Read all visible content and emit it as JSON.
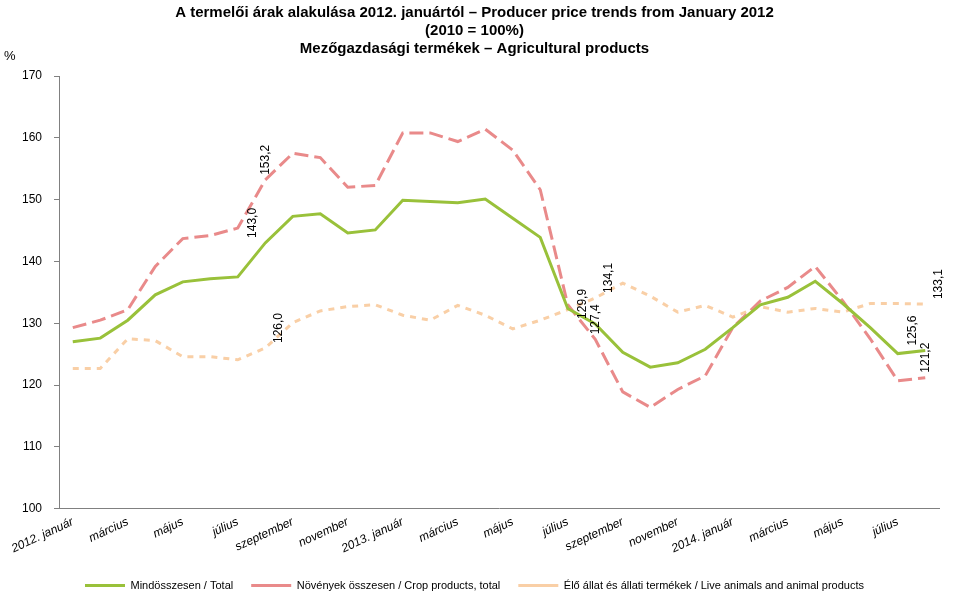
{
  "chart_data": {
    "type": "line",
    "title": [
      "A termelői árak alakulása 2012. januártól – Producer price trends from January 2012",
      "(2010 = 100%)",
      "Mezőgazdasági termékek – Agricultural products"
    ],
    "y_label": "%",
    "categories": [
      "2012. január",
      null,
      "március",
      null,
      "május",
      null,
      "július",
      null,
      "szeptember",
      null,
      "november",
      null,
      "2013. január",
      null,
      "március",
      null,
      "május",
      null,
      "július",
      null,
      "szeptember",
      null,
      "november",
      null,
      "2014. január",
      null,
      "március",
      null,
      "május",
      null,
      "július",
      null
    ],
    "series": [
      {
        "name": "Mindösszesen / Total",
        "color": "#99c13a",
        "line_style": "solid",
        "values": [
          127.0,
          127.6,
          130.5,
          134.6,
          136.7,
          137.2,
          137.5,
          143.0,
          147.3,
          147.7,
          144.6,
          145.1,
          149.9,
          149.7,
          149.5,
          150.1,
          147.0,
          143.9,
          132.4,
          129.9,
          125.3,
          122.9,
          123.6,
          125.8,
          129.3,
          133.0,
          134.2,
          136.8,
          133.2,
          129.3,
          125.1,
          125.6
        ],
        "value_labels": [
          null,
          null,
          null,
          null,
          null,
          null,
          null,
          "143,0",
          null,
          null,
          null,
          null,
          null,
          null,
          null,
          null,
          null,
          null,
          null,
          "129,9",
          null,
          null,
          null,
          null,
          null,
          null,
          null,
          null,
          null,
          null,
          null,
          "125,6"
        ]
      },
      {
        "name": "Növények összesen / Crop products, total",
        "color": "#e98a8a",
        "line_style": "dashed",
        "values": [
          129.3,
          130.5,
          132.2,
          139.2,
          143.7,
          144.2,
          145.4,
          153.2,
          157.5,
          156.8,
          152.0,
          152.3,
          160.8,
          160.8,
          159.4,
          161.4,
          158.0,
          151.6,
          133.0,
          127.4,
          118.9,
          116.4,
          119.3,
          121.5,
          129.3,
          133.6,
          135.8,
          139.2,
          133.6,
          127.5,
          120.7,
          121.2
        ],
        "value_labels": [
          null,
          null,
          null,
          null,
          null,
          null,
          null,
          "153,2",
          null,
          null,
          null,
          null,
          null,
          null,
          null,
          null,
          null,
          null,
          null,
          "127,4",
          null,
          null,
          null,
          null,
          null,
          null,
          null,
          null,
          null,
          null,
          null,
          "121,2"
        ]
      },
      {
        "name": "Élő állat és állati termékek / Live animals and animal products",
        "color": "#f9cfa6",
        "line_style": "dotted",
        "values": [
          122.7,
          122.7,
          127.5,
          127.2,
          124.6,
          124.6,
          124.1,
          126.0,
          130.1,
          132.0,
          132.7,
          133.0,
          131.3,
          130.5,
          132.9,
          131.3,
          129.1,
          130.5,
          132.2,
          134.1,
          136.5,
          134.4,
          131.8,
          132.9,
          131.0,
          132.7,
          131.8,
          132.4,
          131.8,
          133.2,
          133.2,
          133.1
        ],
        "value_labels": [
          null,
          null,
          null,
          null,
          null,
          null,
          null,
          "126,0",
          null,
          null,
          null,
          null,
          null,
          null,
          null,
          null,
          null,
          null,
          null,
          "134,1",
          null,
          null,
          null,
          null,
          null,
          null,
          null,
          null,
          null,
          null,
          null,
          "133,1"
        ]
      }
    ],
    "ylim": [
      100,
      170
    ],
    "yticks": [
      100,
      110,
      120,
      130,
      140,
      150,
      160,
      170
    ],
    "grid": false,
    "legend": "bottom",
    "data_labels": true
  }
}
